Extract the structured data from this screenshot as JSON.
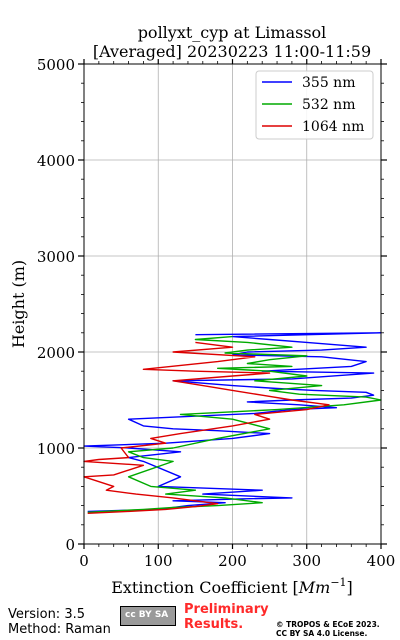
{
  "chart_data": {
    "type": "line",
    "title": "pollyxt_cyp at Limassol",
    "subtitle": "[Averaged] 20230223 11:00-11:59",
    "xlabel": "Extinction Coefficient [Mm⁻¹]",
    "ylabel": "Height (m)",
    "xlim": [
      0,
      400
    ],
    "ylim": [
      0,
      5000
    ],
    "xticks": [
      "0",
      "100",
      "200",
      "300",
      "400"
    ],
    "yticks": [
      "0",
      "1000",
      "2000",
      "3000",
      "4000",
      "5000"
    ],
    "grid": true,
    "legend_position": "top-right",
    "series": [
      {
        "name": "355 nm",
        "color": "#0000ff",
        "x": [
          5,
          100,
          140,
          190,
          120,
          210,
          280,
          160,
          240,
          100,
          130,
          80,
          60,
          130,
          60,
          0,
          110,
          200,
          250,
          180,
          120,
          80,
          60,
          230,
          280,
          340,
          290,
          220,
          280,
          360,
          390,
          380,
          310,
          260,
          200,
          120,
          280,
          390,
          240,
          360,
          380,
          320,
          200,
          220,
          320,
          380,
          300,
          250,
          200,
          400,
          150
        ],
        "y": [
          340,
          360,
          400,
          430,
          450,
          470,
          480,
          520,
          560,
          600,
          700,
          860,
          900,
          960,
          1000,
          1020,
          1050,
          1100,
          1150,
          1180,
          1200,
          1230,
          1300,
          1360,
          1400,
          1420,
          1450,
          1480,
          1500,
          1520,
          1550,
          1580,
          1600,
          1620,
          1650,
          1700,
          1720,
          1780,
          1800,
          1850,
          1900,
          1950,
          1970,
          2000,
          2020,
          2050,
          2100,
          2130,
          2160,
          2200,
          2180
        ]
      },
      {
        "name": "532 nm",
        "color": "#00aa00",
        "x": [
          5,
          80,
          120,
          180,
          240,
          190,
          110,
          150,
          90,
          60,
          120,
          80,
          60,
          120,
          180,
          250,
          200,
          130,
          260,
          350,
          400,
          380,
          290,
          250,
          320,
          230,
          300,
          250,
          180,
          280,
          220,
          250,
          300,
          190,
          220,
          280,
          220,
          150,
          200
        ],
        "y": [
          330,
          360,
          380,
          400,
          430,
          480,
          520,
          560,
          600,
          700,
          860,
          900,
          960,
          1000,
          1100,
          1200,
          1300,
          1350,
          1400,
          1450,
          1500,
          1530,
          1560,
          1600,
          1650,
          1700,
          1750,
          1800,
          1830,
          1850,
          1880,
          1920,
          1960,
          1990,
          2020,
          2050,
          2100,
          2130,
          2160
        ]
      },
      {
        "name": "1064 nm",
        "color": "#dd0000",
        "x": [
          5,
          60,
          110,
          150,
          180,
          120,
          70,
          30,
          40,
          0,
          40,
          80,
          0,
          20,
          60,
          50,
          110,
          90,
          130,
          200,
          250,
          230,
          300,
          330,
          280,
          240,
          200,
          160,
          120,
          200,
          250,
          150,
          80,
          180,
          230,
          120,
          200,
          150
        ],
        "y": [
          320,
          340,
          360,
          390,
          420,
          480,
          520,
          560,
          600,
          700,
          720,
          820,
          860,
          880,
          900,
          1000,
          1050,
          1100,
          1150,
          1230,
          1300,
          1350,
          1400,
          1450,
          1500,
          1550,
          1600,
          1650,
          1700,
          1750,
          1780,
          1800,
          1820,
          1900,
          1950,
          2000,
          2050,
          2100
        ]
      }
    ]
  },
  "footer": {
    "version": "Version: 3.5",
    "method": "Method: Raman",
    "preliminary_line1": "Preliminary",
    "preliminary_line2": "Results.",
    "license_line1": "© TROPOS & ECoE 2023.",
    "license_line2": "CC BY SA 4.0 License.",
    "cc_badge_text": "cc  BY  SA"
  }
}
